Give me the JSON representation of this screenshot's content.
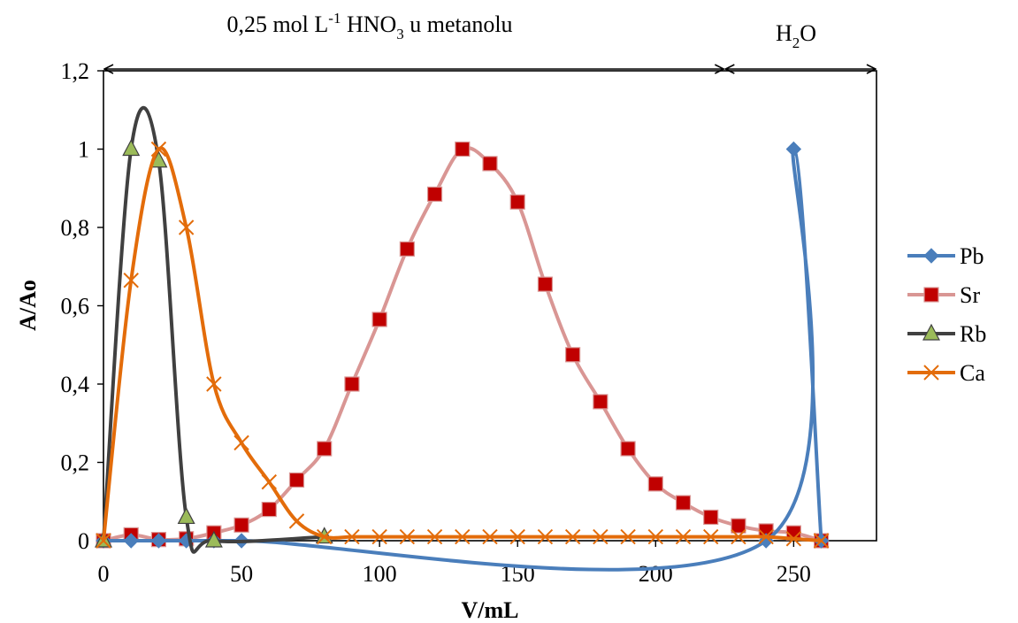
{
  "chart_data": {
    "type": "line",
    "title": "",
    "xlabel": "V/mL",
    "ylabel": "A/Ao",
    "xlim": [
      0,
      280
    ],
    "ylim": [
      0,
      1.2
    ],
    "xticks": [
      0,
      50,
      100,
      150,
      200,
      250
    ],
    "yticks": [
      0,
      0.2,
      0.4,
      0.6,
      0.8,
      1,
      1.2
    ],
    "xtick_labels": [
      "0",
      "50",
      "100",
      "150",
      "200",
      "250"
    ],
    "ytick_labels": [
      "0",
      "0,2",
      "0,4",
      "0,6",
      "0,8",
      "1",
      "1,2"
    ],
    "grid": false,
    "legend_position": "right",
    "annotations": {
      "eluent1": {
        "base": "0,25 mol L",
        "sup": "-1",
        "mid": " HNO",
        "sub": "3",
        "tail": " u metanolu",
        "x_range": [
          0,
          225
        ]
      },
      "eluent2": {
        "base": "H",
        "sub": "2",
        "tail": "O",
        "x_range": [
          225,
          280
        ]
      }
    },
    "series": [
      {
        "name": "Pb",
        "color": "#4a7ebb",
        "marker": "diamond",
        "x": [
          0,
          10,
          20,
          30,
          40,
          50,
          240,
          250,
          260
        ],
        "y": [
          0,
          0,
          0,
          0,
          0,
          0,
          0,
          1,
          0
        ]
      },
      {
        "name": "Sr",
        "color": "#d99694",
        "marker_fill": "#c00000",
        "marker": "square",
        "x": [
          0,
          10,
          20,
          30,
          40,
          50,
          60,
          70,
          80,
          90,
          100,
          110,
          120,
          130,
          140,
          150,
          160,
          170,
          180,
          190,
          200,
          210,
          220,
          230,
          240,
          250,
          260
        ],
        "y": [
          0,
          0.015,
          0.003,
          0.005,
          0.02,
          0.04,
          0.08,
          0.155,
          0.235,
          0.4,
          0.565,
          0.745,
          0.885,
          1,
          0.963,
          0.865,
          0.655,
          0.475,
          0.355,
          0.235,
          0.145,
          0.097,
          0.06,
          0.038,
          0.025,
          0.02,
          0
        ]
      },
      {
        "name": "Rb",
        "color": "#404040",
        "marker_fill": "#9bbb59",
        "marker": "triangle",
        "x": [
          0,
          10,
          20,
          30,
          40,
          80
        ],
        "y": [
          0,
          1,
          0.97,
          0.06,
          0,
          0.01
        ]
      },
      {
        "name": "Ca",
        "color": "#e36c0a",
        "marker": "cross",
        "x": [
          0,
          10,
          20,
          30,
          40,
          50,
          60,
          70,
          80,
          90,
          100,
          110,
          120,
          130,
          140,
          150,
          160,
          170,
          180,
          190,
          200,
          210,
          220,
          230,
          240,
          250,
          260
        ],
        "y": [
          0,
          0.665,
          1,
          0.8,
          0.4,
          0.25,
          0.15,
          0.05,
          0.01,
          0.01,
          0.01,
          0.01,
          0.01,
          0.01,
          0.01,
          0.01,
          0.01,
          0.01,
          0.01,
          0.01,
          0.01,
          0.01,
          0.01,
          0.01,
          0.01,
          0.005,
          0
        ]
      }
    ]
  }
}
